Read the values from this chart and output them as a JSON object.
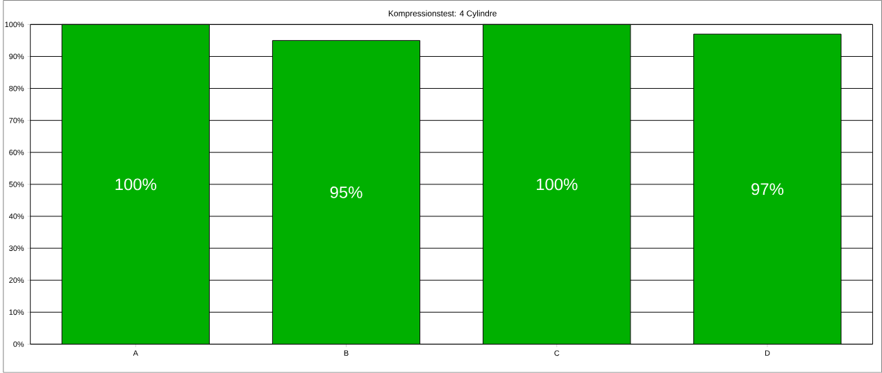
{
  "chart_data": {
    "type": "bar",
    "title": "Kompressionstest: 4 Cylindre",
    "categories": [
      "A",
      "B",
      "C",
      "D"
    ],
    "values": [
      100,
      95,
      100,
      97
    ],
    "value_labels": [
      "100%",
      "95%",
      "100%",
      "97%"
    ],
    "color": "#00b000",
    "ylim": [
      0,
      100
    ],
    "yticks": [
      {
        "value": 0,
        "label": "0%"
      },
      {
        "value": 10,
        "label": "10%"
      },
      {
        "value": 20,
        "label": "20%"
      },
      {
        "value": 30,
        "label": "30%"
      },
      {
        "value": 40,
        "label": "40%"
      },
      {
        "value": 50,
        "label": "50%"
      },
      {
        "value": 60,
        "label": "60%"
      },
      {
        "value": 70,
        "label": "70%"
      },
      {
        "value": 80,
        "label": "80%"
      },
      {
        "value": 90,
        "label": "90%"
      },
      {
        "value": 100,
        "label": "100%"
      }
    ],
    "grid": "y"
  }
}
